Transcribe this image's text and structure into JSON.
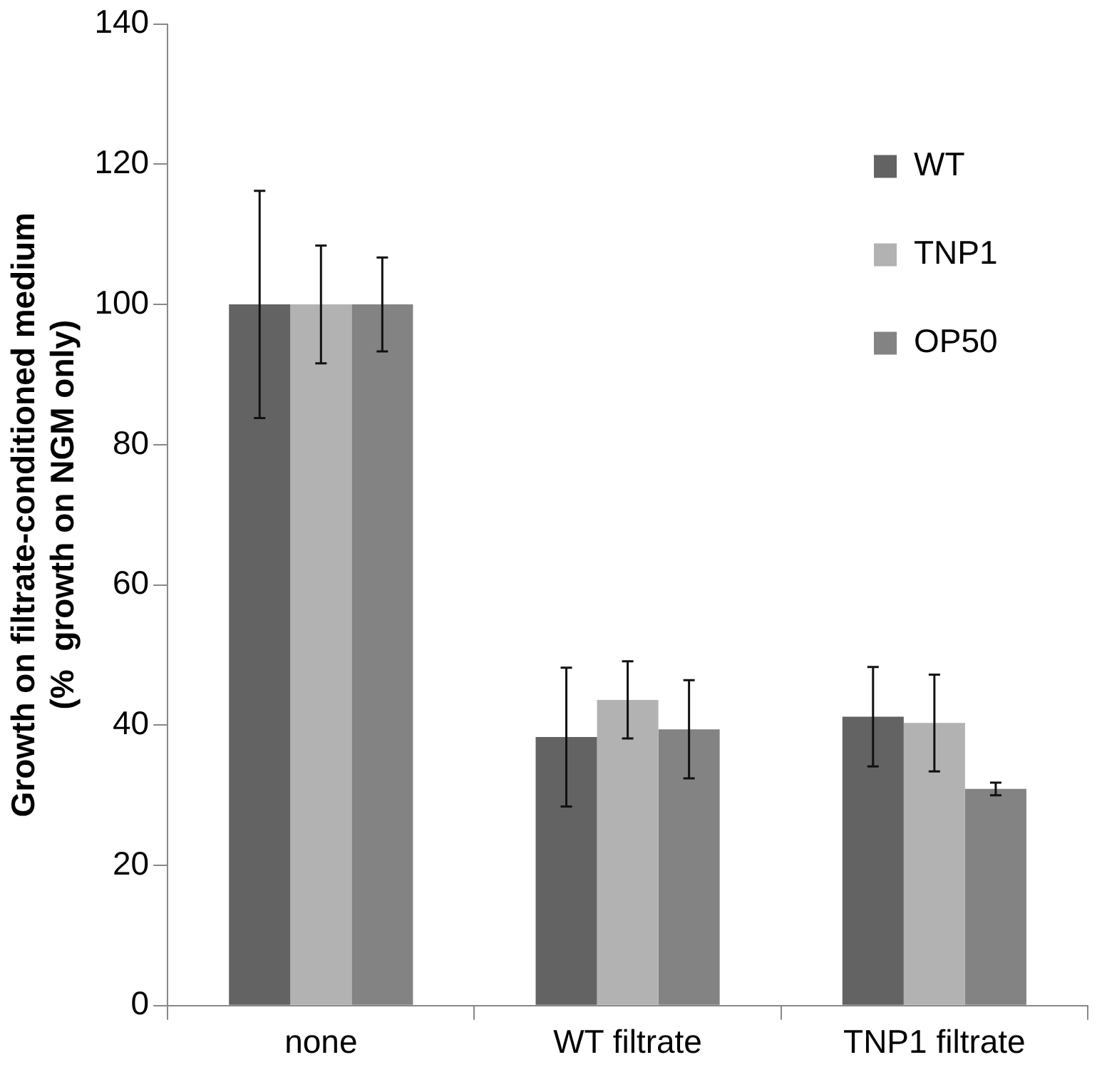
{
  "chart_data": {
    "type": "bar",
    "ylabel": "Growth on filtrate-conditioned medium\n(%  growth on NGM only)",
    "categories": [
      "none",
      "WT filtrate",
      "TNP1 filtrate"
    ],
    "series": [
      {
        "name": "WT",
        "color": "#636363",
        "values": [
          100,
          38.3,
          41.2
        ],
        "errors": [
          16.2,
          9.9,
          7.1
        ]
      },
      {
        "name": "TNP1",
        "color": "#b2b2b2",
        "values": [
          100,
          43.6,
          40.3
        ],
        "errors": [
          8.4,
          5.5,
          6.9
        ]
      },
      {
        "name": "OP50",
        "color": "#838383",
        "values": [
          100,
          39.4,
          30.9
        ],
        "errors": [
          6.7,
          7.0,
          0.9
        ]
      }
    ],
    "ylim": [
      0,
      140
    ],
    "yticks": [
      0,
      20,
      40,
      60,
      80,
      100,
      120,
      140
    ],
    "grid": false,
    "legend": "top right"
  }
}
